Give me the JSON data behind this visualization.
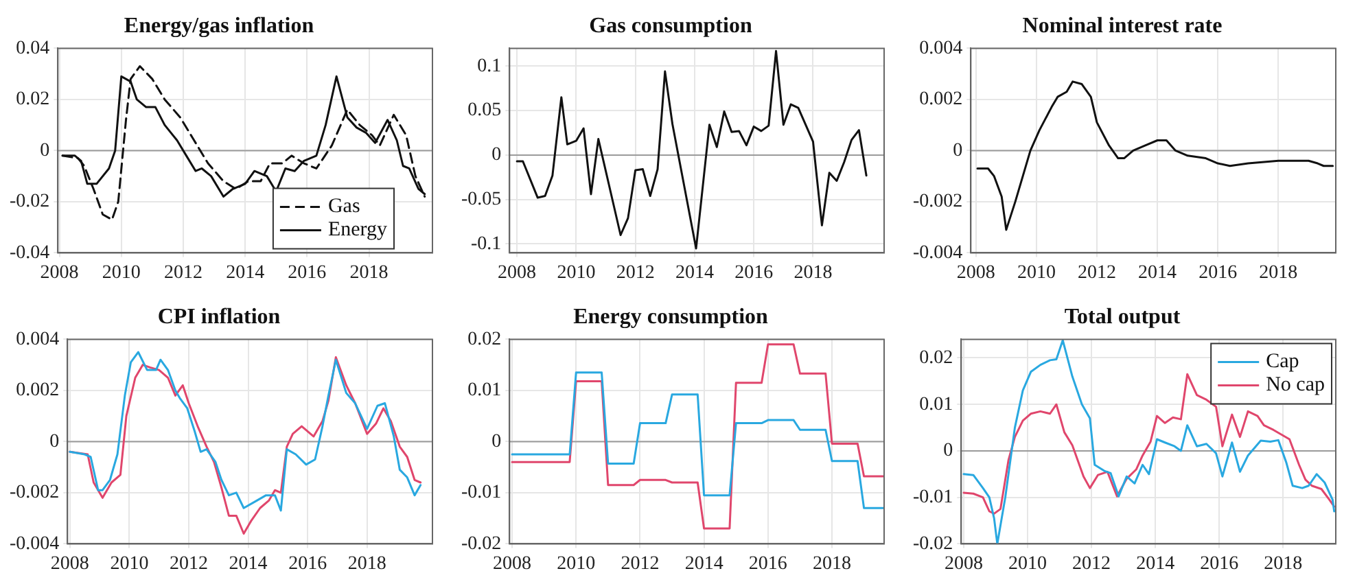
{
  "chart_data": [
    {
      "type": "line",
      "title": "Energy/gas inflation",
      "xlim": [
        2007.95,
        2020.05
      ],
      "xticks": [
        2008,
        2010,
        2012,
        2014,
        2016,
        2018
      ],
      "ylim": [
        -0.04,
        0.04
      ],
      "yticks": [
        -0.04,
        -0.02,
        0,
        0.02,
        0.04
      ],
      "grid": true,
      "legend": "bottom right",
      "marker": "none",
      "ref_lines": [
        {
          "axis": "y",
          "value": 0,
          "color": "#9a9a9a"
        }
      ],
      "series": [
        {
          "name": "Gas",
          "color": "#111111",
          "line_style": "dashed",
          "x": [
            2008.1,
            2008.6,
            2008.8,
            2009.1,
            2009.4,
            2009.7,
            2009.9,
            2010.15,
            2010.3,
            2010.6,
            2011.0,
            2011.4,
            2011.9,
            2012.3,
            2012.8,
            2013.3,
            2013.7,
            2014.1,
            2014.5,
            2014.8,
            2015.2,
            2015.5,
            2015.9,
            2016.3,
            2016.8,
            2017.3,
            2017.7,
            2018.1,
            2018.35,
            2018.8,
            2019.2,
            2019.5,
            2019.8
          ],
          "values": [
            -0.002,
            -0.003,
            -0.006,
            -0.015,
            -0.025,
            -0.027,
            -0.02,
            0.012,
            0.028,
            0.033,
            0.028,
            0.02,
            0.013,
            0.005,
            -0.005,
            -0.012,
            -0.015,
            -0.012,
            -0.012,
            -0.005,
            -0.005,
            -0.002,
            -0.005,
            -0.007,
            0.002,
            0.016,
            0.01,
            0.006,
            0.002,
            0.014,
            0.006,
            -0.01,
            -0.018
          ]
        },
        {
          "name": "Energy",
          "color": "#111111",
          "line_style": "solid",
          "x": [
            2008.1,
            2008.5,
            2008.7,
            2008.9,
            2009.2,
            2009.6,
            2009.8,
            2010.0,
            2010.3,
            2010.5,
            2010.8,
            2011.1,
            2011.4,
            2011.8,
            2012.1,
            2012.4,
            2012.6,
            2012.9,
            2013.3,
            2013.6,
            2014.0,
            2014.3,
            2014.7,
            2015.0,
            2015.3,
            2015.6,
            2015.9,
            2016.3,
            2016.6,
            2016.95,
            2017.3,
            2017.6,
            2017.9,
            2018.2,
            2018.6,
            2018.9,
            2019.1,
            2019.3,
            2019.6,
            2019.8
          ],
          "values": [
            -0.002,
            -0.002,
            -0.004,
            -0.013,
            -0.013,
            -0.007,
            0,
            0.029,
            0.027,
            0.02,
            0.017,
            0.017,
            0.01,
            0.004,
            -0.002,
            -0.008,
            -0.007,
            -0.01,
            -0.018,
            -0.015,
            -0.013,
            -0.008,
            -0.01,
            -0.016,
            -0.007,
            -0.008,
            -0.004,
            -0.002,
            0.01,
            0.029,
            0.013,
            0.009,
            0.007,
            0.003,
            0.012,
            0.004,
            -0.006,
            -0.007,
            -0.015,
            -0.017
          ]
        }
      ]
    },
    {
      "type": "line",
      "title": "Gas consumption",
      "xlim": [
        2007.75,
        2020.4
      ],
      "xticks": [
        2008,
        2010,
        2012,
        2014,
        2016,
        2018
      ],
      "ylim": [
        -0.11,
        0.12
      ],
      "yticks": [
        -0.1,
        -0.05,
        0,
        0.05,
        0.1
      ],
      "grid": true,
      "marker": "none",
      "ref_lines": [
        {
          "axis": "y",
          "value": 0,
          "color": "#9a9a9a"
        }
      ],
      "series": [
        {
          "color": "#111111",
          "line_style": "solid",
          "x": [
            2008.0,
            2008.2,
            2008.7,
            2008.95,
            2009.2,
            2009.5,
            2009.7,
            2010.0,
            2010.25,
            2010.5,
            2010.75,
            2011.5,
            2011.75,
            2012.0,
            2012.25,
            2012.5,
            2012.75,
            2013.0,
            2013.25,
            2014.05,
            2014.5,
            2014.75,
            2015.0,
            2015.25,
            2015.5,
            2015.75,
            2016.0,
            2016.25,
            2016.5,
            2016.75,
            2017.0,
            2017.25,
            2017.5,
            2018.0,
            2018.3,
            2018.55,
            2018.8,
            2019.05,
            2019.3,
            2019.55,
            2019.8
          ],
          "values": [
            -0.007,
            -0.007,
            -0.048,
            -0.046,
            -0.023,
            0.065,
            0.012,
            0.016,
            0.03,
            -0.044,
            0.018,
            -0.09,
            -0.071,
            -0.017,
            -0.016,
            -0.046,
            -0.016,
            0.094,
            0.035,
            -0.105,
            0.034,
            0.009,
            0.049,
            0.026,
            0.027,
            0.011,
            0.032,
            0.027,
            0.033,
            0.117,
            0.034,
            0.057,
            0.053,
            0.015,
            -0.079,
            -0.02,
            -0.029,
            -0.008,
            0.017,
            0.028,
            -0.023
          ]
        }
      ]
    },
    {
      "type": "line",
      "title": "Nominal interest rate",
      "xlim": [
        2007.83,
        2019.9
      ],
      "xticks": [
        2008,
        2010,
        2012,
        2014,
        2016,
        2018
      ],
      "ylim": [
        -0.004,
        0.004
      ],
      "yticks": [
        -0.004,
        -0.002,
        0,
        0.002,
        0.004
      ],
      "grid": true,
      "marker": "none",
      "ref_lines": [
        {
          "axis": "y",
          "value": 0,
          "color": "#9a9a9a"
        }
      ],
      "series": [
        {
          "color": "#111111",
          "line_style": "solid",
          "x": [
            2008.05,
            2008.4,
            2008.6,
            2008.85,
            2009.0,
            2009.3,
            2009.8,
            2010.1,
            2010.5,
            2010.7,
            2011.0,
            2011.2,
            2011.5,
            2011.8,
            2012.0,
            2012.4,
            2012.7,
            2012.9,
            2013.2,
            2013.6,
            2014.0,
            2014.3,
            2014.6,
            2015.0,
            2015.6,
            2016.0,
            2016.4,
            2017.0,
            2018.0,
            2019.0,
            2019.3,
            2019.5,
            2019.8
          ],
          "values": [
            -0.0007,
            -0.0007,
            -0.001,
            -0.0018,
            -0.0031,
            -0.002,
            0,
            0.0008,
            0.0017,
            0.0021,
            0.0023,
            0.0027,
            0.0026,
            0.0021,
            0.0011,
            0.0002,
            -0.0003,
            -0.0003,
            0,
            0.0002,
            0.0004,
            0.0004,
            0,
            -0.0002,
            -0.0003,
            -0.0005,
            -0.0006,
            -0.0005,
            -0.0004,
            -0.0004,
            -0.0005,
            -0.0006,
            -0.0006
          ]
        }
      ]
    },
    {
      "type": "line",
      "title": "CPI inflation",
      "xlim": [
        2007.92,
        2020.2
      ],
      "xticks": [
        2008,
        2010,
        2012,
        2014,
        2016,
        2018
      ],
      "ylim": [
        -0.004,
        0.004
      ],
      "yticks": [
        -0.004,
        -0.002,
        0,
        0.002,
        0.004
      ],
      "grid": true,
      "marker": "none",
      "ref_lines": [
        {
          "axis": "y",
          "value": 0,
          "color": "#9a9a9a"
        }
      ],
      "series": [
        {
          "color": "#29a8e0",
          "line_style": "solid",
          "x": [
            2008.0,
            2008.5,
            2008.7,
            2008.95,
            2009.1,
            2009.35,
            2009.6,
            2009.85,
            2010.05,
            2010.3,
            2010.6,
            2010.9,
            2011.05,
            2011.3,
            2011.55,
            2011.7,
            2011.95,
            2012.2,
            2012.4,
            2012.6,
            2012.9,
            2013.1,
            2013.35,
            2013.6,
            2013.85,
            2014.3,
            2014.6,
            2014.9,
            2015.1,
            2015.3,
            2015.6,
            2015.95,
            2016.25,
            2016.5,
            2016.7,
            2016.95,
            2017.3,
            2017.6,
            2018.0,
            2018.35,
            2018.6,
            2018.9,
            2019.1,
            2019.35,
            2019.6,
            2019.8
          ],
          "values": [
            -0.0004,
            -0.0005,
            -0.0006,
            -0.0019,
            -0.0019,
            -0.0015,
            -0.0005,
            0.0018,
            0.0031,
            0.0035,
            0.0028,
            0.0028,
            0.0032,
            0.0028,
            0.002,
            0.0017,
            0.0013,
            0.0004,
            -0.0004,
            -0.0003,
            -0.0008,
            -0.0015,
            -0.0021,
            -0.002,
            -0.0026,
            -0.0023,
            -0.0021,
            -0.0021,
            -0.0027,
            -0.0003,
            -0.0005,
            -0.0009,
            -0.0007,
            0.0006,
            0.0018,
            0.0032,
            0.0019,
            0.0015,
            0.0005,
            0.0014,
            0.0015,
            0.0002,
            -0.0011,
            -0.0014,
            -0.0021,
            -0.0017
          ]
        },
        {
          "color": "#e0466c",
          "line_style": "solid",
          "x": [
            2008.0,
            2008.6,
            2008.8,
            2009.1,
            2009.4,
            2009.7,
            2009.9,
            2010.2,
            2010.45,
            2010.7,
            2011.0,
            2011.3,
            2011.55,
            2011.8,
            2012.0,
            2012.3,
            2012.6,
            2012.85,
            2013.1,
            2013.35,
            2013.6,
            2013.85,
            2014.1,
            2014.4,
            2014.7,
            2014.9,
            2015.1,
            2015.3,
            2015.5,
            2015.8,
            2016.2,
            2016.5,
            2016.7,
            2016.95,
            2017.3,
            2017.6,
            2018.0,
            2018.3,
            2018.55,
            2018.8,
            2019.1,
            2019.35,
            2019.6,
            2019.8
          ],
          "values": [
            -0.0004,
            -0.0005,
            -0.0016,
            -0.0022,
            -0.0016,
            -0.0013,
            0.001,
            0.0025,
            0.003,
            0.0029,
            0.0028,
            0.0025,
            0.0018,
            0.0022,
            0.0015,
            0.0006,
            -0.0002,
            -0.0008,
            -0.0018,
            -0.0029,
            -0.0029,
            -0.0036,
            -0.0031,
            -0.0026,
            -0.0023,
            -0.0019,
            -0.002,
            -0.0002,
            0.0003,
            0.0006,
            0.0002,
            0.0008,
            0.0016,
            0.0033,
            0.0022,
            0.0015,
            0.0003,
            0.0007,
            0.0013,
            0.0008,
            -0.0002,
            -0.0006,
            -0.0015,
            -0.0016
          ]
        }
      ]
    },
    {
      "type": "line",
      "title": "Energy consumption",
      "xlim": [
        2007.92,
        2019.63
      ],
      "xticks": [
        2008,
        2010,
        2012,
        2014,
        2016,
        2018
      ],
      "ylim": [
        -0.02,
        0.02
      ],
      "yticks": [
        -0.02,
        -0.01,
        0,
        0.01,
        0.02
      ],
      "grid": true,
      "marker": "none",
      "ref_lines": [
        {
          "axis": "y",
          "value": 0,
          "color": "#9a9a9a"
        }
      ],
      "series": [
        {
          "color": "#29a8e0",
          "line_style": "solid",
          "x": [
            2008.0,
            2009.8,
            2010.0,
            2010.8,
            2011.0,
            2011.8,
            2012.0,
            2012.8,
            2013.0,
            2013.8,
            2014.0,
            2014.8,
            2015.0,
            2015.8,
            2016.0,
            2016.8,
            2017.0,
            2017.8,
            2018.0,
            2018.8,
            2019.0,
            2019.6
          ],
          "values": [
            -0.0025,
            -0.0025,
            0.0135,
            0.0135,
            -0.0043,
            -0.0043,
            0.0036,
            0.0036,
            0.0092,
            0.0092,
            -0.0105,
            -0.0105,
            0.0036,
            0.0036,
            0.0042,
            0.0042,
            0.0023,
            0.0023,
            -0.0038,
            -0.0038,
            -0.013,
            -0.013
          ]
        },
        {
          "color": "#e0466c",
          "line_style": "solid",
          "x": [
            2008.0,
            2009.8,
            2010.0,
            2010.8,
            2011.0,
            2011.8,
            2012.0,
            2012.8,
            2013.0,
            2013.8,
            2014.0,
            2014.8,
            2015.0,
            2015.8,
            2016.0,
            2016.8,
            2017.0,
            2017.8,
            2018.0,
            2018.8,
            2019.0,
            2019.6
          ],
          "values": [
            -0.004,
            -0.004,
            0.0118,
            0.0118,
            -0.0085,
            -0.0085,
            -0.0075,
            -0.0075,
            -0.008,
            -0.008,
            -0.017,
            -0.017,
            0.0115,
            0.0115,
            0.019,
            0.019,
            0.0133,
            0.0133,
            -0.0004,
            -0.0004,
            -0.0068,
            -0.0068
          ]
        }
      ]
    },
    {
      "type": "line",
      "title": "Total output",
      "xlim": [
        2007.92,
        2019.65
      ],
      "xticks": [
        2008,
        2010,
        2012,
        2014,
        2016,
        2018
      ],
      "ylim": [
        -0.02,
        0.024
      ],
      "yticks": [
        -0.02,
        -0.01,
        0,
        0.01,
        0.02
      ],
      "grid": true,
      "legend": "top right",
      "marker": "none",
      "ref_lines": [
        {
          "axis": "y",
          "value": 0,
          "color": "#9a9a9a"
        }
      ],
      "series": [
        {
          "name": "Cap",
          "color": "#29a8e0",
          "line_style": "solid",
          "x": [
            2008.0,
            2008.3,
            2008.6,
            2008.8,
            2008.95,
            2009.05,
            2009.3,
            2009.6,
            2009.85,
            2010.1,
            2010.4,
            2010.7,
            2010.9,
            2011.1,
            2011.4,
            2011.7,
            2011.95,
            2012.1,
            2012.4,
            2012.6,
            2012.85,
            2013.1,
            2013.35,
            2013.6,
            2013.8,
            2014.05,
            2014.3,
            2014.6,
            2014.8,
            2015.0,
            2015.3,
            2015.6,
            2015.9,
            2016.1,
            2016.4,
            2016.65,
            2016.9,
            2017.3,
            2017.6,
            2017.85,
            2018.1,
            2018.3,
            2018.6,
            2018.8,
            2019.05,
            2019.3,
            2019.55,
            2019.6
          ],
          "values": [
            -0.005,
            -0.0052,
            -0.008,
            -0.01,
            -0.0145,
            -0.02,
            -0.01,
            0.005,
            0.013,
            0.017,
            0.0185,
            0.0195,
            0.0197,
            0.0238,
            0.016,
            0.01,
            0.007,
            -0.003,
            -0.0043,
            -0.0048,
            -0.0098,
            -0.0055,
            -0.007,
            -0.003,
            -0.005,
            0.0025,
            0.0018,
            0.001,
            0,
            0.0055,
            0.001,
            0.0015,
            -0.0005,
            -0.0055,
            0.0018,
            -0.0045,
            -0.001,
            0.0022,
            0.002,
            0.0023,
            -0.0025,
            -0.0075,
            -0.008,
            -0.0075,
            -0.005,
            -0.0068,
            -0.0105,
            -0.013
          ]
        },
        {
          "name": "No cap",
          "color": "#e0466c",
          "line_style": "solid",
          "x": [
            2008.0,
            2008.3,
            2008.6,
            2008.8,
            2008.95,
            2009.15,
            2009.4,
            2009.6,
            2009.85,
            2010.1,
            2010.4,
            2010.7,
            2010.9,
            2011.15,
            2011.4,
            2011.75,
            2011.95,
            2012.2,
            2012.5,
            2012.8,
            2013.1,
            2013.4,
            2013.6,
            2013.85,
            2014.05,
            2014.3,
            2014.55,
            2014.8,
            2015.0,
            2015.3,
            2015.6,
            2015.9,
            2016.1,
            2016.4,
            2016.65,
            2016.9,
            2017.2,
            2017.4,
            2017.7,
            2017.95,
            2018.2,
            2018.5,
            2018.7,
            2018.9,
            2019.2,
            2019.45,
            2019.6
          ],
          "values": [
            -0.009,
            -0.0092,
            -0.01,
            -0.013,
            -0.0135,
            -0.0125,
            -0.002,
            0.003,
            0.0065,
            0.008,
            0.0085,
            0.008,
            0.01,
            0.004,
            0.0012,
            -0.0055,
            -0.008,
            -0.0052,
            -0.0045,
            -0.0098,
            -0.006,
            -0.004,
            -0.001,
            0.002,
            0.0075,
            0.006,
            0.0072,
            0.0068,
            0.0165,
            0.012,
            0.011,
            0.0095,
            0.001,
            0.0078,
            0.003,
            0.0085,
            0.0075,
            0.0055,
            0.0045,
            0.0035,
            0.0025,
            -0.003,
            -0.0062,
            -0.0075,
            -0.0082,
            -0.0105,
            -0.012
          ]
        }
      ]
    }
  ]
}
